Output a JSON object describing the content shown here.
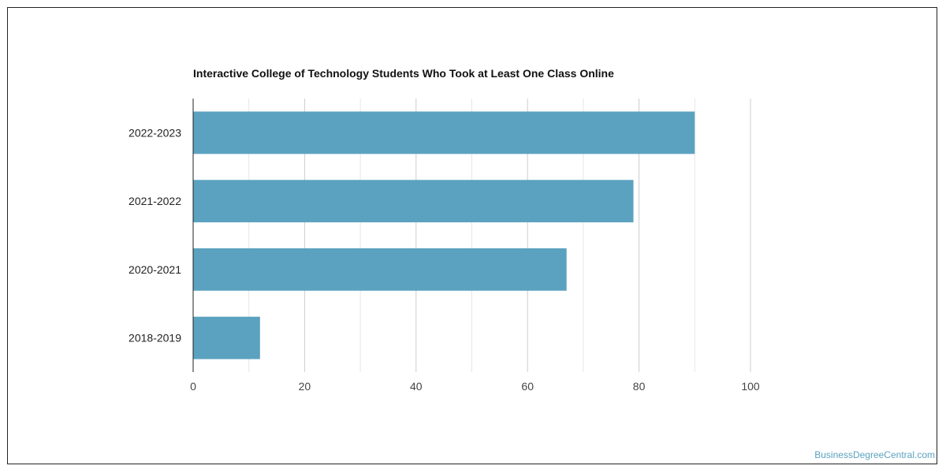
{
  "chart_data": {
    "type": "bar",
    "orientation": "horizontal",
    "title": "Interactive College of Technology Students Who Took at Least One Class Online",
    "categories": [
      "2022-2023",
      "2021-2022",
      "2020-2021",
      "2018-2019"
    ],
    "values": [
      90,
      79,
      67,
      12
    ],
    "xlim": [
      0,
      100
    ],
    "xticks": [
      0,
      20,
      40,
      60,
      80,
      100
    ],
    "grid": true,
    "bar_color": "#5ba2c0"
  },
  "watermark": "BusinessDegreeCentral.com"
}
